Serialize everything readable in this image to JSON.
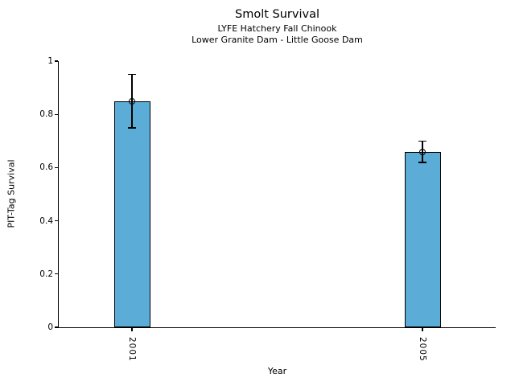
{
  "chart_data": {
    "type": "bar",
    "title": "Smolt Survival",
    "subtitle_line1": "LYFE Hatchery Fall Chinook",
    "subtitle_line2": "Lower Granite Dam - Little Goose Dam",
    "xlabel": "Year",
    "ylabel": "PIT-Tag Survival",
    "categories": [
      "2001",
      "2005"
    ],
    "values": [
      0.85,
      0.66
    ],
    "error_low": [
      0.75,
      0.62
    ],
    "error_high": [
      0.95,
      0.7
    ],
    "ylim": [
      0,
      1
    ],
    "ytick_values": [
      0,
      0.2,
      0.4,
      0.6,
      0.8,
      1
    ],
    "ytick_labels": [
      "0",
      "0.2",
      "0.4",
      "0.6",
      "0.8",
      "1"
    ],
    "grid": false,
    "legend": null,
    "bar_color": "#5BACD7",
    "bar_edge_color": "#000000",
    "errorbar_color": "#000000",
    "marker_shape": "open-circle"
  }
}
